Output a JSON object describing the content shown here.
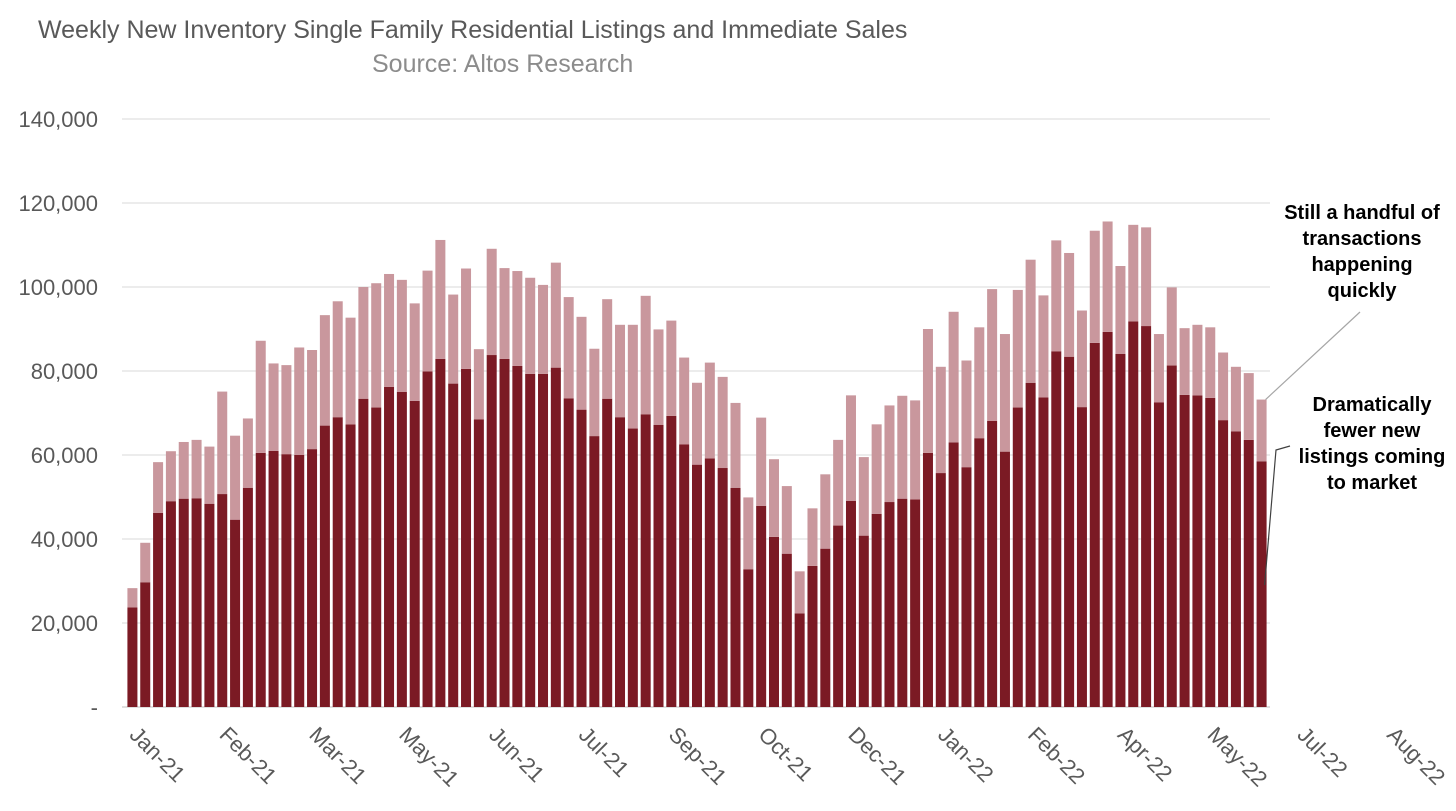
{
  "chart_data": {
    "type": "bar",
    "stacked": true,
    "title": "Weekly New Inventory Single Family Residential Listings and Immediate Sales",
    "subtitle": "Source: Altos Research",
    "ylim": [
      0,
      140000
    ],
    "yticks": [
      0,
      20000,
      40000,
      60000,
      80000,
      100000,
      120000,
      140000
    ],
    "ytick_labels": [
      "-",
      "20,000",
      "40,000",
      "60,000",
      "80,000",
      "100,000",
      "120,000",
      "140,000"
    ],
    "grid": true,
    "month_labels": [
      {
        "label": "Jan-21",
        "week": 0
      },
      {
        "label": "Feb-21",
        "week": 7
      },
      {
        "label": "Mar-21",
        "week": 14
      },
      {
        "label": "May-21",
        "week": 21
      },
      {
        "label": "Jun-21",
        "week": 28
      },
      {
        "label": "Jul-21",
        "week": 35
      },
      {
        "label": "Sep-21",
        "week": 42
      },
      {
        "label": "Oct-21",
        "week": 49
      },
      {
        "label": "Dec-21",
        "week": 56
      },
      {
        "label": "Jan-22",
        "week": 63
      },
      {
        "label": "Feb-22",
        "week": 70
      },
      {
        "label": "Apr-22",
        "week": 77
      },
      {
        "label": "May-22",
        "week": 84
      },
      {
        "label": "Jul-22",
        "week": 91
      },
      {
        "label": "Aug-22",
        "week": 98
      }
    ],
    "series": [
      {
        "key": "bottom",
        "color": "#7b1a24",
        "values": [
          23700,
          29700,
          46200,
          49000,
          49600,
          49700,
          48400,
          50700,
          44600,
          52200,
          60500,
          61000,
          60200,
          60000,
          61400,
          67000,
          69000,
          67300,
          73400,
          71300,
          76200,
          75000,
          72900,
          79900,
          82900,
          77000,
          80500,
          68500,
          83800,
          82900,
          81200,
          79300,
          79300,
          80800,
          73500,
          70800,
          64500,
          73400,
          69000,
          66300,
          69700,
          67200,
          69300,
          62500,
          57700,
          59200,
          56900,
          52200,
          32800,
          47900,
          40500,
          36500,
          22300,
          33600,
          37700,
          43200,
          49100,
          40800,
          46000,
          48800,
          49600,
          49400,
          60500,
          55700,
          63000,
          57100,
          64000,
          68100,
          60800,
          71300,
          77200,
          73700,
          84700,
          83400,
          71400,
          86700,
          89300,
          84100,
          91800,
          90700,
          72500,
          81300,
          74300,
          74200,
          73600,
          68300,
          65600,
          63600,
          58500
        ]
      },
      {
        "key": "top",
        "color": "#c9979d",
        "values": [
          4600,
          9400,
          12100,
          11900,
          13500,
          13900,
          13600,
          24400,
          20000,
          16500,
          26700,
          20800,
          21200,
          25600,
          23600,
          26300,
          27600,
          25400,
          26600,
          29600,
          26900,
          26700,
          23200,
          24000,
          28300,
          21200,
          23900,
          16700,
          25300,
          21600,
          22600,
          22900,
          21200,
          25000,
          24100,
          22100,
          20800,
          23700,
          22000,
          24700,
          28200,
          22700,
          22700,
          20700,
          19500,
          22800,
          21700,
          20200,
          17100,
          21000,
          18500,
          16100,
          10000,
          13700,
          17700,
          20400,
          25100,
          18700,
          21300,
          23000,
          24500,
          23600,
          29500,
          25300,
          31100,
          25400,
          26400,
          31400,
          28000,
          28000,
          29300,
          24300,
          26400,
          24700,
          23000,
          26700,
          26300,
          20900,
          23000,
          23500,
          16300,
          18600,
          15900,
          16800,
          16800,
          16100,
          15400,
          15900,
          14700
        ]
      }
    ],
    "annotations": [
      {
        "lines": [
          "Still a handful of",
          "transactions",
          "happening",
          "quickly"
        ]
      },
      {
        "lines": [
          "Dramatically",
          "fewer new",
          "listings coming",
          "to market"
        ]
      }
    ]
  }
}
